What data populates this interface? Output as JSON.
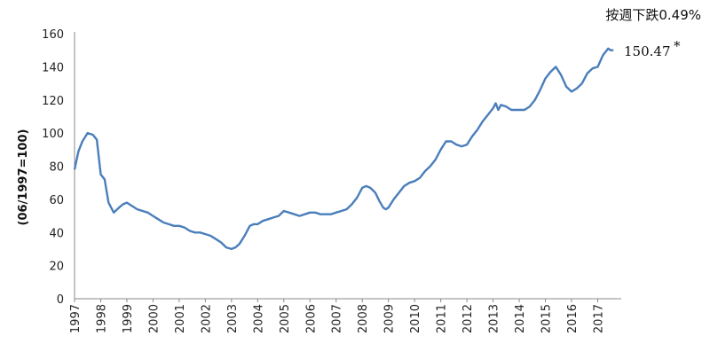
{
  "chart_data": {
    "type": "line",
    "ylabel": "(06/1997=100)",
    "ylim": [
      0,
      160
    ],
    "yticks": [
      0,
      20,
      40,
      60,
      80,
      100,
      120,
      140,
      160
    ],
    "xlim": [
      1997.0,
      2017.9
    ],
    "xticks": [
      "1997",
      "1998",
      "1999",
      "2000",
      "2001",
      "2002",
      "2003",
      "2004",
      "2005",
      "2006",
      "2007",
      "2008",
      "2009",
      "2010",
      "2011",
      "2012",
      "2013",
      "2014",
      "2015",
      "2016",
      "2017"
    ],
    "grid": false,
    "line_color": "#4a7ebb",
    "annotation_top": "按週下跌0.49%",
    "end_label": "150.47",
    "end_marker": "*",
    "series": [
      {
        "x": [
          1997.0,
          1997.15,
          1997.3,
          1997.5,
          1997.7,
          1997.85,
          1998.0,
          1998.15,
          1998.3,
          1998.5,
          1998.7,
          1998.85,
          1999.0,
          1999.2,
          1999.4,
          1999.6,
          1999.8,
          2000.0,
          2000.2,
          2000.4,
          2000.6,
          2000.8,
          2001.0,
          2001.2,
          2001.4,
          2001.6,
          2001.8,
          2002.0,
          2002.2,
          2002.4,
          2002.6,
          2002.8,
          2003.0,
          2003.15,
          2003.3,
          2003.5,
          2003.7,
          2003.85,
          2004.0,
          2004.2,
          2004.4,
          2004.6,
          2004.8,
          2005.0,
          2005.2,
          2005.4,
          2005.6,
          2005.8,
          2006.0,
          2006.2,
          2006.4,
          2006.6,
          2006.8,
          2007.0,
          2007.2,
          2007.4,
          2007.6,
          2007.8,
          2008.0,
          2008.15,
          2008.3,
          2008.5,
          2008.65,
          2008.8,
          2008.9,
          2009.0,
          2009.2,
          2009.4,
          2009.6,
          2009.8,
          2010.0,
          2010.2,
          2010.4,
          2010.6,
          2010.8,
          2011.0,
          2011.2,
          2011.4,
          2011.6,
          2011.8,
          2012.0,
          2012.2,
          2012.4,
          2012.6,
          2012.8,
          2013.0,
          2013.1,
          2013.2,
          2013.3,
          2013.5,
          2013.7,
          2013.9,
          2014.0,
          2014.2,
          2014.4,
          2014.6,
          2014.8,
          2015.0,
          2015.2,
          2015.4,
          2015.6,
          2015.8,
          2016.0,
          2016.2,
          2016.4,
          2016.6,
          2016.8,
          2017.0,
          2017.2,
          2017.4,
          2017.5,
          2017.6
        ],
        "y": [
          78,
          89,
          95,
          100,
          99,
          96,
          75,
          72,
          58,
          52,
          55,
          57,
          58,
          56,
          54,
          53,
          52,
          50,
          48,
          46,
          45,
          44,
          44,
          43,
          41,
          40,
          40,
          39,
          38,
          36,
          34,
          31,
          30,
          31,
          33,
          38,
          44,
          45,
          45,
          47,
          48,
          49,
          50,
          53,
          52,
          51,
          50,
          51,
          52,
          52,
          51,
          51,
          51,
          52,
          53,
          54,
          57,
          61,
          67,
          68,
          67,
          64,
          59,
          55,
          54,
          55,
          60,
          64,
          68,
          70,
          71,
          73,
          77,
          80,
          84,
          90,
          95,
          95,
          93,
          92,
          93,
          98,
          102,
          107,
          111,
          115,
          118,
          114,
          117,
          116,
          114,
          114,
          114,
          114,
          116,
          120,
          126,
          133,
          137,
          140,
          135,
          128,
          125,
          127,
          130,
          136,
          139,
          140,
          147,
          151,
          150,
          150
        ]
      }
    ]
  }
}
